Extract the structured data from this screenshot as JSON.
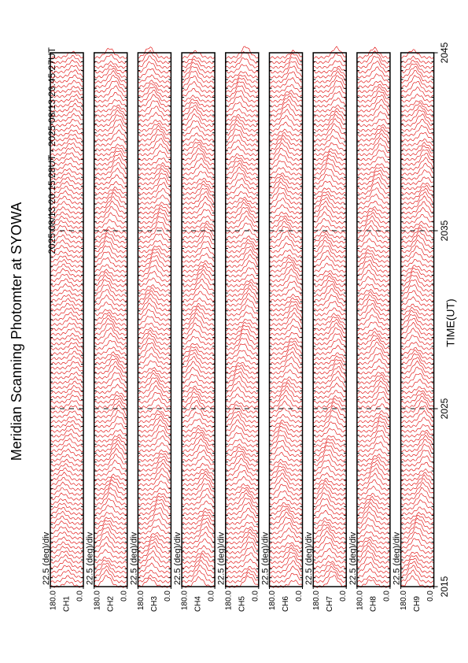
{
  "chart_data": {
    "type": "msp",
    "title": "Meridian Scanning Photomter at SYOWA",
    "subtitle": "2025 08/13 20:15:28UT - 2025 08/13 20:45:27UT",
    "x_label": "TIME(UT)",
    "xlim": [
      2015,
      2045
    ],
    "xticks": [
      2015,
      2025,
      2035,
      2045
    ],
    "ylim": [
      0,
      180
    ],
    "yticks": [
      {
        "value": 180,
        "label": "180.0"
      },
      {
        "value": 0,
        "label": "0.0"
      }
    ],
    "scale_label": "22.5 (deg)/div",
    "color": "#e00000",
    "panels": [
      "CH1",
      "CH2",
      "CH3",
      "CH4",
      "CH5",
      "CH6",
      "CH7",
      "CH8",
      "CH9"
    ]
  }
}
